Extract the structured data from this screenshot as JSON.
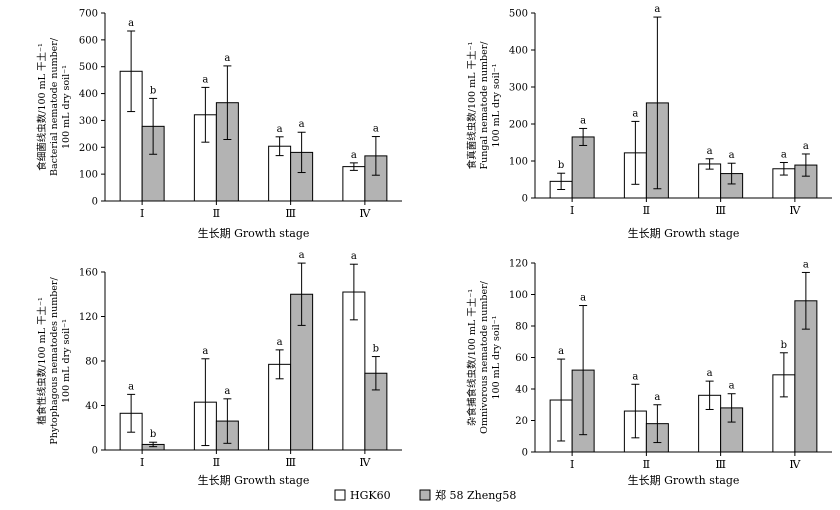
{
  "colors": {
    "hgk60": "#ffffff",
    "zheng58": "#b3b3b3",
    "axis": "#000000"
  },
  "legend": {
    "hgk60": "HGK60",
    "zheng58": "郑 58 Zheng58"
  },
  "chart_data": [
    {
      "type": "bar",
      "categories": [
        "Ⅰ",
        "Ⅱ",
        "Ⅲ",
        "Ⅳ"
      ],
      "xlabel": "生长期 Growth stage",
      "ylabel": [
        "食细菌线虫数/100 mL 干土⁻¹",
        "Bacterial nematode number/",
        "100 mL dry soil⁻¹"
      ],
      "ylim": [
        0,
        700
      ],
      "yticks": [
        0,
        100,
        200,
        300,
        400,
        500,
        600,
        700
      ],
      "series": [
        {
          "name": "HGK60",
          "values": [
            483,
            321,
            204,
            128
          ],
          "err": [
            150,
            102,
            35,
            14
          ],
          "labels": [
            "a",
            "a",
            "a",
            "a"
          ]
        },
        {
          "name": "郑 58 Zheng58",
          "values": [
            278,
            366,
            181,
            168
          ],
          "err": [
            104,
            137,
            75,
            72
          ],
          "labels": [
            "b",
            "a",
            "a",
            "a"
          ]
        }
      ]
    },
    {
      "type": "bar",
      "categories": [
        "Ⅰ",
        "Ⅱ",
        "Ⅲ",
        "Ⅳ"
      ],
      "xlabel": "生长期 Growth stage",
      "ylabel": [
        "食真菌线虫数/100 mL 干土⁻¹",
        "Fungal nematode number/",
        "100 mL dry soil⁻¹"
      ],
      "ylim": [
        0,
        500
      ],
      "yticks": [
        0,
        100,
        200,
        300,
        400,
        500
      ],
      "series": [
        {
          "name": "HGK60",
          "values": [
            45,
            122,
            92,
            79
          ],
          "err": [
            22,
            85,
            14,
            17
          ],
          "labels": [
            "b",
            "a",
            "a",
            "a"
          ]
        },
        {
          "name": "郑 58 Zheng58",
          "values": [
            165,
            257,
            66,
            89
          ],
          "err": [
            23,
            232,
            28,
            30
          ],
          "labels": [
            "a",
            "a",
            "a",
            "a"
          ]
        }
      ]
    },
    {
      "type": "bar",
      "categories": [
        "Ⅰ",
        "Ⅱ",
        "Ⅲ",
        "Ⅳ"
      ],
      "xlabel": "生长期 Growth stage",
      "ylabel": [
        "植食性线虫数/100 mL 干土⁻¹",
        "Phytophagous nematodes number/",
        "100 mL dry soil⁻¹"
      ],
      "ylim": [
        0,
        160
      ],
      "yticks": [
        0,
        40,
        80,
        120,
        160
      ],
      "series": [
        {
          "name": "HGK60",
          "values": [
            33,
            43,
            77,
            142
          ],
          "err": [
            17,
            39,
            13,
            25
          ],
          "labels": [
            "a",
            "a",
            "a",
            "a"
          ]
        },
        {
          "name": "郑 58 Zheng58",
          "values": [
            5,
            26,
            140,
            69
          ],
          "err": [
            2,
            20,
            28,
            15
          ],
          "labels": [
            "b",
            "a",
            "a",
            "b"
          ]
        }
      ]
    },
    {
      "type": "bar",
      "categories": [
        "Ⅰ",
        "Ⅱ",
        "Ⅲ",
        "Ⅳ"
      ],
      "xlabel": "生长期 Growth stage",
      "ylabel": [
        "杂食捕食线虫数/100 mL 干土⁻¹",
        "Omnivorous nematode number/",
        "100 mL dry soil⁻¹"
      ],
      "ylim": [
        0,
        120
      ],
      "yticks": [
        0,
        20,
        40,
        60,
        80,
        100,
        120
      ],
      "series": [
        {
          "name": "HGK60",
          "values": [
            33,
            26,
            36,
            49
          ],
          "err": [
            26,
            17,
            9,
            14
          ],
          "labels": [
            "a",
            "a",
            "a",
            "b"
          ]
        },
        {
          "name": "郑 58 Zheng58",
          "values": [
            52,
            18,
            28,
            96
          ],
          "err": [
            41,
            12,
            9,
            18
          ],
          "labels": [
            "a",
            "a",
            "a",
            "a"
          ]
        }
      ]
    }
  ]
}
